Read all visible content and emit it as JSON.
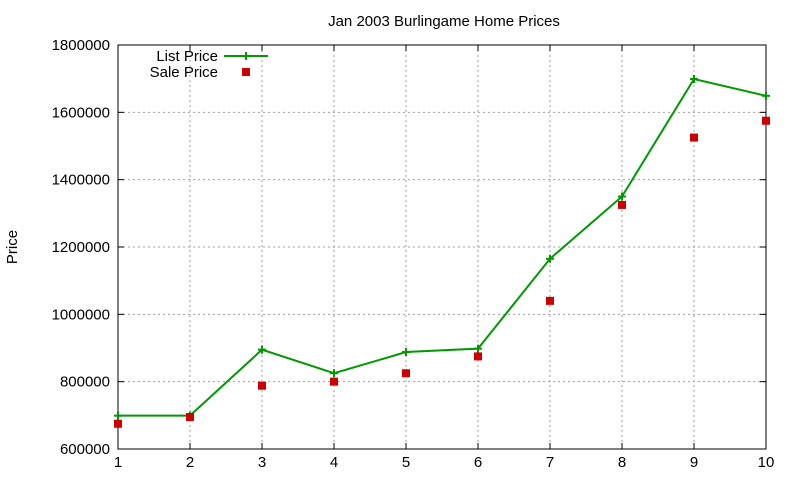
{
  "chart_data": {
    "type": "line",
    "title": "Jan 2003 Burlingame Home Prices",
    "xlabel": "",
    "ylabel": "Price",
    "xlim": [
      1,
      10
    ],
    "ylim": [
      600000,
      1800000
    ],
    "x_ticks": [
      "1",
      "2",
      "3",
      "4",
      "5",
      "6",
      "7",
      "8",
      "9",
      "10"
    ],
    "y_ticks": [
      "600000",
      "800000",
      "1000000",
      "1200000",
      "1400000",
      "1600000",
      "1800000"
    ],
    "grid": true,
    "legend_position": "top-left",
    "series": [
      {
        "name": "List Price",
        "style": "lines+points",
        "marker": "plus",
        "color": "#009900",
        "x": [
          1,
          2,
          3,
          4,
          5,
          6,
          7,
          8,
          9,
          10
        ],
        "y": [
          699000,
          699000,
          895000,
          825000,
          888000,
          898000,
          1165000,
          1350000,
          1699000,
          1649000
        ]
      },
      {
        "name": "Sale Price",
        "style": "points",
        "marker": "square",
        "color": "#cc0000",
        "x": [
          1,
          2,
          3,
          4,
          5,
          6,
          7,
          8,
          9,
          10
        ],
        "y": [
          675000,
          695000,
          788000,
          800000,
          825000,
          875000,
          1040000,
          1325000,
          1525000,
          1575000
        ]
      }
    ]
  }
}
